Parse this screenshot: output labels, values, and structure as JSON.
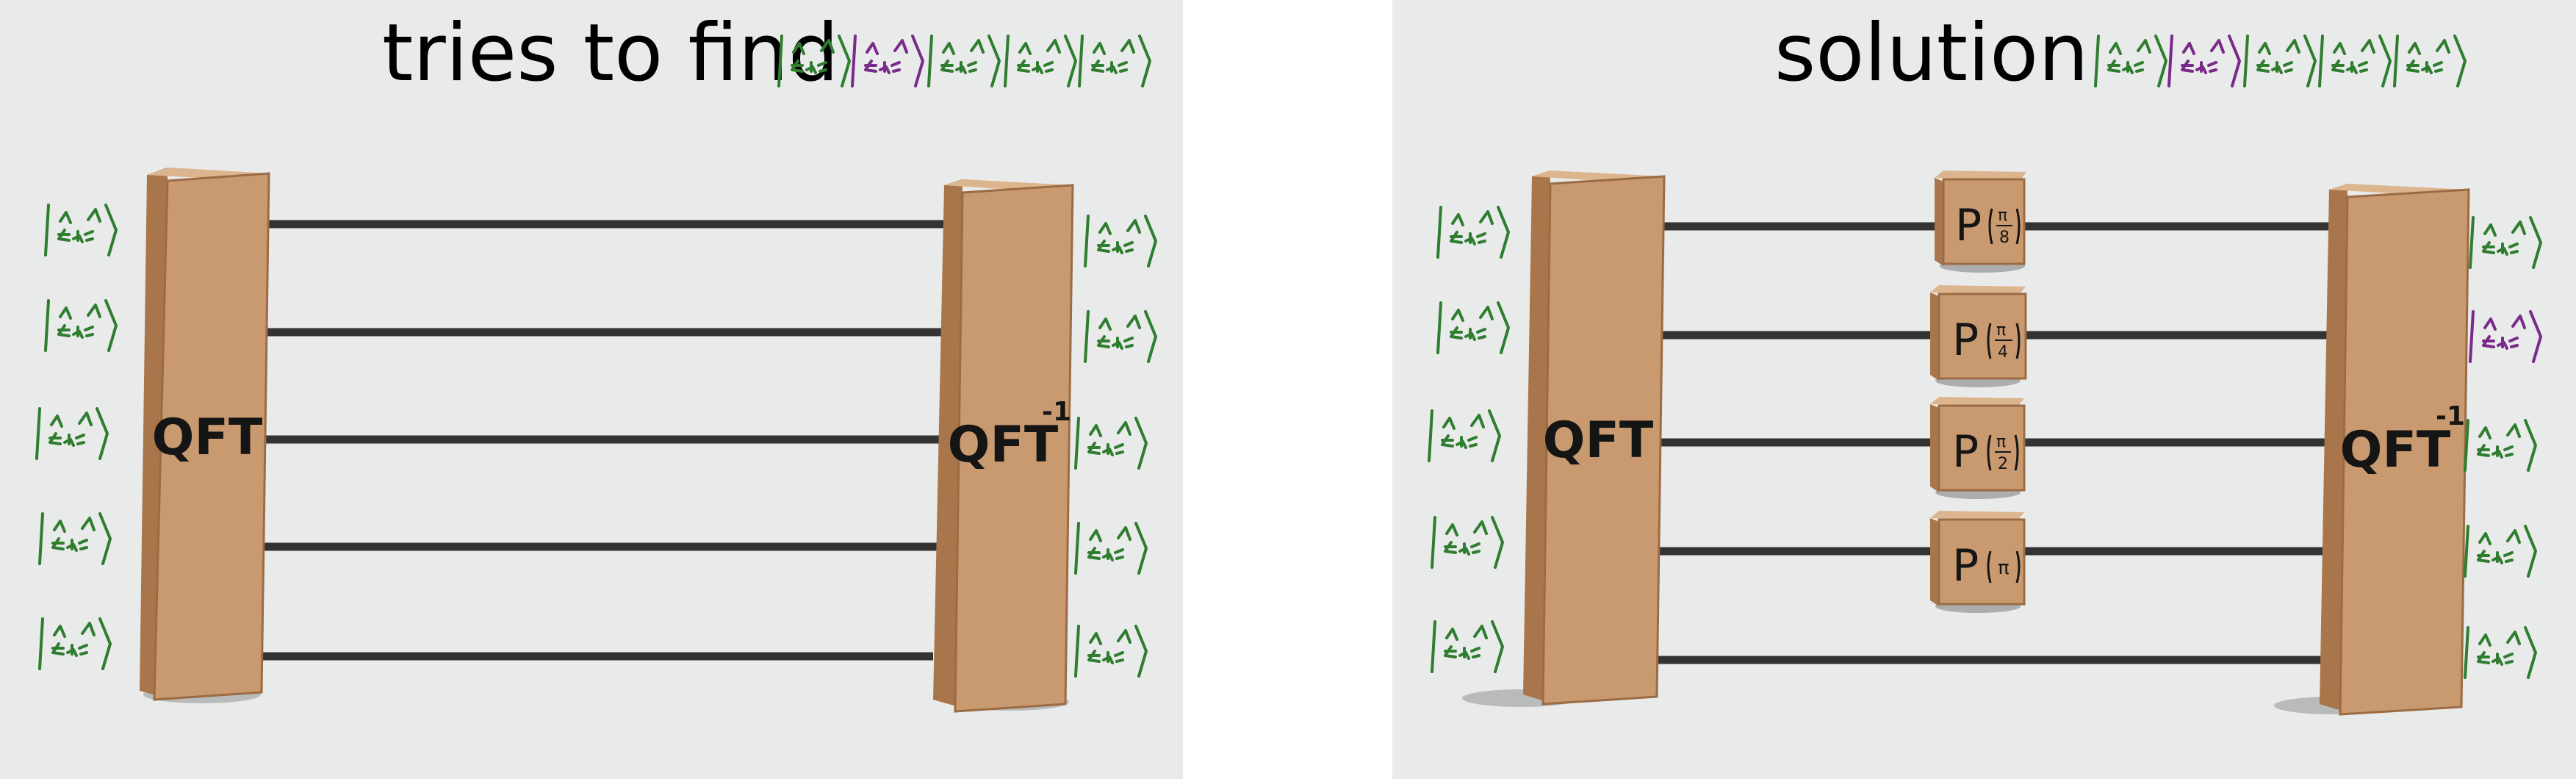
{
  "left_panel": {
    "title": "tries to find",
    "target_ket_colors": [
      "green",
      "purple",
      "green",
      "green",
      "green"
    ],
    "input_ket_colors": [
      "green",
      "green",
      "green",
      "green",
      "green"
    ],
    "output_ket_colors": [
      "green",
      "green",
      "green",
      "green",
      "green"
    ],
    "gates": [
      "QFT",
      "QFT",
      "-1"
    ]
  },
  "right_panel": {
    "title": "solution",
    "target_ket_colors": [
      "green",
      "purple",
      "green",
      "green",
      "green"
    ],
    "input_ket_colors": [
      "green",
      "green",
      "green",
      "green",
      "green"
    ],
    "output_ket_colors": [
      "green",
      "purple",
      "green",
      "green",
      "green"
    ],
    "gates": [
      "QFT",
      "QFT",
      "-1"
    ],
    "phase_gates": [
      {
        "symbol": "P",
        "num": "π",
        "den": "8"
      },
      {
        "symbol": "P",
        "num": "π",
        "den": "4"
      },
      {
        "symbol": "P",
        "num": "π",
        "den": "2"
      },
      {
        "symbol": "P",
        "num": "π",
        "den": ""
      }
    ]
  },
  "colors": {
    "green": "#2f7d2f",
    "purple": "#7a2a8a",
    "box_front": "#c99a6f",
    "box_side": "#a9764c",
    "box_top": "#dcb58e",
    "wire": "#333333",
    "panel_bg": "#e9eaea"
  }
}
